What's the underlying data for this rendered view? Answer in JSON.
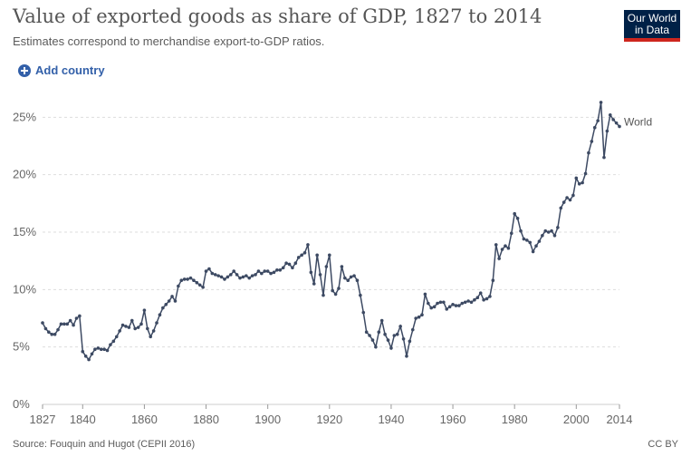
{
  "header": {
    "title": "Value of exported goods as share of GDP, 1827 to 2014",
    "subtitle": "Estimates correspond to merchandise export-to-GDP ratios.",
    "logo_line1": "Our World",
    "logo_line2": "in Data"
  },
  "controls": {
    "add_country_label": "Add country",
    "add_icon": "plus-circle-icon"
  },
  "footer": {
    "source": "Source: Fouquin and Hugot (CEPII 2016)",
    "license": "CC BY"
  },
  "colors": {
    "line": "#3d4a63",
    "grid": "#dddddd",
    "accent": "#3360a9",
    "logo_bg": "#002147",
    "logo_stripe": "#ce261e"
  },
  "chart_data": {
    "type": "line",
    "title": "Value of exported goods as share of GDP, 1827 to 2014",
    "xlabel": "",
    "ylabel": "",
    "xlim": [
      1827,
      2014
    ],
    "ylim": [
      0,
      27
    ],
    "x_ticks": [
      1827,
      1840,
      1860,
      1880,
      1900,
      1920,
      1940,
      1960,
      1980,
      2000,
      2014
    ],
    "y_ticks": [
      0,
      5,
      10,
      15,
      20,
      25
    ],
    "y_tick_labels": [
      "0%",
      "5%",
      "10%",
      "15%",
      "20%",
      "25%"
    ],
    "grid": true,
    "series": [
      {
        "name": "World",
        "points": [
          [
            1827,
            7.1
          ],
          [
            1828,
            6.6
          ],
          [
            1829,
            6.3
          ],
          [
            1830,
            6.1
          ],
          [
            1831,
            6.1
          ],
          [
            1832,
            6.5
          ],
          [
            1833,
            7.0
          ],
          [
            1834,
            7.0
          ],
          [
            1835,
            7.0
          ],
          [
            1836,
            7.3
          ],
          [
            1837,
            6.9
          ],
          [
            1838,
            7.5
          ],
          [
            1839,
            7.7
          ],
          [
            1840,
            4.6
          ],
          [
            1841,
            4.2
          ],
          [
            1842,
            3.9
          ],
          [
            1843,
            4.4
          ],
          [
            1844,
            4.8
          ],
          [
            1845,
            4.9
          ],
          [
            1846,
            4.8
          ],
          [
            1847,
            4.8
          ],
          [
            1848,
            4.7
          ],
          [
            1849,
            5.2
          ],
          [
            1850,
            5.5
          ],
          [
            1851,
            5.9
          ],
          [
            1852,
            6.4
          ],
          [
            1853,
            6.9
          ],
          [
            1854,
            6.8
          ],
          [
            1855,
            6.7
          ],
          [
            1856,
            7.3
          ],
          [
            1857,
            6.6
          ],
          [
            1858,
            6.7
          ],
          [
            1859,
            7.0
          ],
          [
            1860,
            8.2
          ],
          [
            1861,
            6.6
          ],
          [
            1862,
            5.9
          ],
          [
            1863,
            6.4
          ],
          [
            1864,
            7.1
          ],
          [
            1865,
            7.8
          ],
          [
            1866,
            8.4
          ],
          [
            1867,
            8.7
          ],
          [
            1868,
            9.0
          ],
          [
            1869,
            9.4
          ],
          [
            1870,
            9.0
          ],
          [
            1871,
            10.3
          ],
          [
            1872,
            10.8
          ],
          [
            1873,
            10.9
          ],
          [
            1874,
            10.9
          ],
          [
            1875,
            11.0
          ],
          [
            1876,
            10.8
          ],
          [
            1877,
            10.6
          ],
          [
            1878,
            10.4
          ],
          [
            1879,
            10.2
          ],
          [
            1880,
            11.6
          ],
          [
            1881,
            11.8
          ],
          [
            1882,
            11.4
          ],
          [
            1883,
            11.3
          ],
          [
            1884,
            11.2
          ],
          [
            1885,
            11.1
          ],
          [
            1886,
            10.9
          ],
          [
            1887,
            11.1
          ],
          [
            1888,
            11.3
          ],
          [
            1889,
            11.6
          ],
          [
            1890,
            11.3
          ],
          [
            1891,
            11.0
          ],
          [
            1892,
            11.1
          ],
          [
            1893,
            11.2
          ],
          [
            1894,
            11.0
          ],
          [
            1895,
            11.2
          ],
          [
            1896,
            11.3
          ],
          [
            1897,
            11.6
          ],
          [
            1898,
            11.4
          ],
          [
            1899,
            11.6
          ],
          [
            1900,
            11.6
          ],
          [
            1901,
            11.4
          ],
          [
            1902,
            11.5
          ],
          [
            1903,
            11.7
          ],
          [
            1904,
            11.7
          ],
          [
            1905,
            11.9
          ],
          [
            1906,
            12.3
          ],
          [
            1907,
            12.2
          ],
          [
            1908,
            11.9
          ],
          [
            1909,
            12.3
          ],
          [
            1910,
            12.8
          ],
          [
            1911,
            13.0
          ],
          [
            1912,
            13.2
          ],
          [
            1913,
            13.9
          ],
          [
            1914,
            11.5
          ],
          [
            1915,
            10.5
          ],
          [
            1916,
            13.0
          ],
          [
            1917,
            11.3
          ],
          [
            1918,
            9.5
          ],
          [
            1919,
            12.0
          ],
          [
            1920,
            13.0
          ],
          [
            1921,
            9.9
          ],
          [
            1922,
            9.6
          ],
          [
            1923,
            10.1
          ],
          [
            1924,
            12.0
          ],
          [
            1925,
            11.0
          ],
          [
            1926,
            10.8
          ],
          [
            1927,
            11.1
          ],
          [
            1928,
            11.2
          ],
          [
            1929,
            10.8
          ],
          [
            1930,
            9.5
          ],
          [
            1931,
            8.0
          ],
          [
            1932,
            6.3
          ],
          [
            1933,
            6.0
          ],
          [
            1934,
            5.6
          ],
          [
            1935,
            5.0
          ],
          [
            1936,
            6.3
          ],
          [
            1937,
            7.3
          ],
          [
            1938,
            6.1
          ],
          [
            1939,
            5.6
          ],
          [
            1940,
            4.9
          ],
          [
            1941,
            6.0
          ],
          [
            1942,
            6.1
          ],
          [
            1943,
            6.8
          ],
          [
            1944,
            5.7
          ],
          [
            1945,
            4.2
          ],
          [
            1946,
            5.5
          ],
          [
            1947,
            6.5
          ],
          [
            1948,
            7.5
          ],
          [
            1949,
            7.6
          ],
          [
            1950,
            7.8
          ],
          [
            1951,
            9.6
          ],
          [
            1952,
            8.8
          ],
          [
            1953,
            8.4
          ],
          [
            1954,
            8.5
          ],
          [
            1955,
            8.8
          ],
          [
            1956,
            8.9
          ],
          [
            1957,
            8.9
          ],
          [
            1958,
            8.3
          ],
          [
            1959,
            8.5
          ],
          [
            1960,
            8.7
          ],
          [
            1961,
            8.6
          ],
          [
            1962,
            8.6
          ],
          [
            1963,
            8.8
          ],
          [
            1964,
            8.9
          ],
          [
            1965,
            9.0
          ],
          [
            1966,
            8.9
          ],
          [
            1967,
            9.1
          ],
          [
            1968,
            9.3
          ],
          [
            1969,
            9.7
          ],
          [
            1970,
            9.1
          ],
          [
            1971,
            9.2
          ],
          [
            1972,
            9.4
          ],
          [
            1973,
            10.8
          ],
          [
            1974,
            13.9
          ],
          [
            1975,
            12.7
          ],
          [
            1976,
            13.5
          ],
          [
            1977,
            13.8
          ],
          [
            1978,
            13.6
          ],
          [
            1979,
            14.9
          ],
          [
            1980,
            16.6
          ],
          [
            1981,
            16.2
          ],
          [
            1982,
            15.1
          ],
          [
            1983,
            14.4
          ],
          [
            1984,
            14.3
          ],
          [
            1985,
            14.1
          ],
          [
            1986,
            13.3
          ],
          [
            1987,
            13.8
          ],
          [
            1988,
            14.2
          ],
          [
            1989,
            14.7
          ],
          [
            1990,
            15.1
          ],
          [
            1991,
            15.0
          ],
          [
            1992,
            15.1
          ],
          [
            1993,
            14.7
          ],
          [
            1994,
            15.4
          ],
          [
            1995,
            17.1
          ],
          [
            1996,
            17.6
          ],
          [
            1997,
            18.0
          ],
          [
            1998,
            17.8
          ],
          [
            1999,
            18.2
          ],
          [
            2000,
            19.7
          ],
          [
            2001,
            19.2
          ],
          [
            2002,
            19.3
          ],
          [
            2003,
            20.1
          ],
          [
            2004,
            21.9
          ],
          [
            2005,
            22.9
          ],
          [
            2006,
            24.1
          ],
          [
            2007,
            24.7
          ],
          [
            2008,
            26.3
          ],
          [
            2009,
            21.5
          ],
          [
            2010,
            23.8
          ],
          [
            2011,
            25.2
          ],
          [
            2012,
            24.8
          ],
          [
            2013,
            24.5
          ],
          [
            2014,
            24.2
          ]
        ]
      }
    ]
  }
}
